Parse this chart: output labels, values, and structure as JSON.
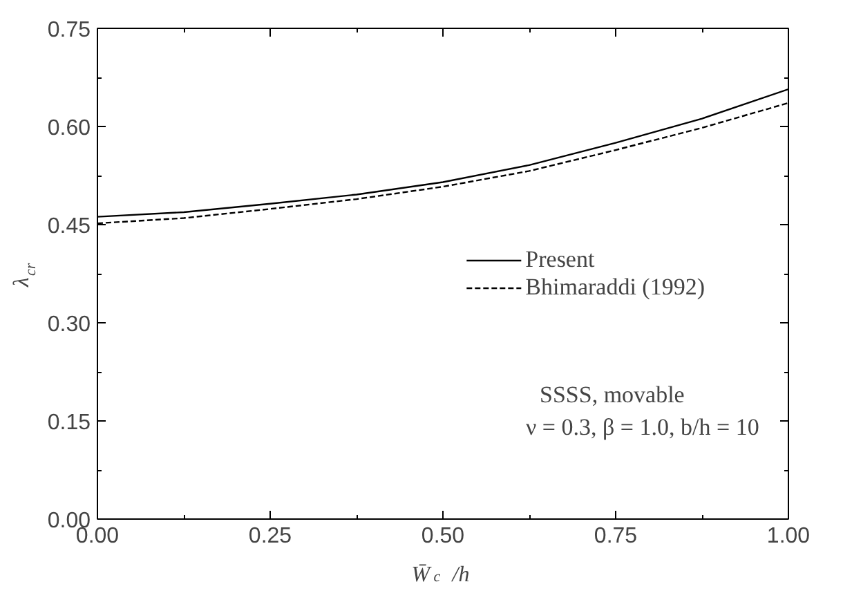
{
  "chart_data": {
    "type": "line",
    "xlabel": "W̄$_{c}$ /h",
    "ylabel": "λ$_{cr}$",
    "x": [
      0,
      0.125,
      0.25,
      0.375,
      0.5,
      0.625,
      0.75,
      0.875,
      1.0
    ],
    "series": [
      {
        "name": "Present",
        "color": "#000000",
        "line_style": "solid",
        "values": [
          0.462,
          0.469,
          0.482,
          0.496,
          0.515,
          0.541,
          0.575,
          0.612,
          0.657
        ]
      },
      {
        "name": "Bhimaraddi (1992)",
        "color": "#000000",
        "line_style": "dashed",
        "values": [
          0.452,
          0.46,
          0.474,
          0.489,
          0.508,
          0.532,
          0.564,
          0.598,
          0.636
        ]
      }
    ],
    "xlim": [
      0,
      1
    ],
    "ylim": [
      0,
      0.75
    ],
    "xticks": [
      {
        "value": 0,
        "label": "0.00"
      },
      0.25,
      {
        "value": 0.5,
        "label": "0.50"
      },
      0.75,
      {
        "value": 1,
        "label": "1.00"
      }
    ],
    "yticks": [
      {
        "value": 0,
        "label": "0.00"
      },
      0.15,
      {
        "value": 0.3,
        "label": "0.30"
      },
      0.45,
      {
        "value": 0.6,
        "label": "0.60"
      },
      0.75
    ],
    "grid": false,
    "legend": "right",
    "marker": "none",
    "annotations": [
      "SSSS,  movable",
      "ν = 0.3,  β = 1.0,  b/h = 10"
    ]
  }
}
